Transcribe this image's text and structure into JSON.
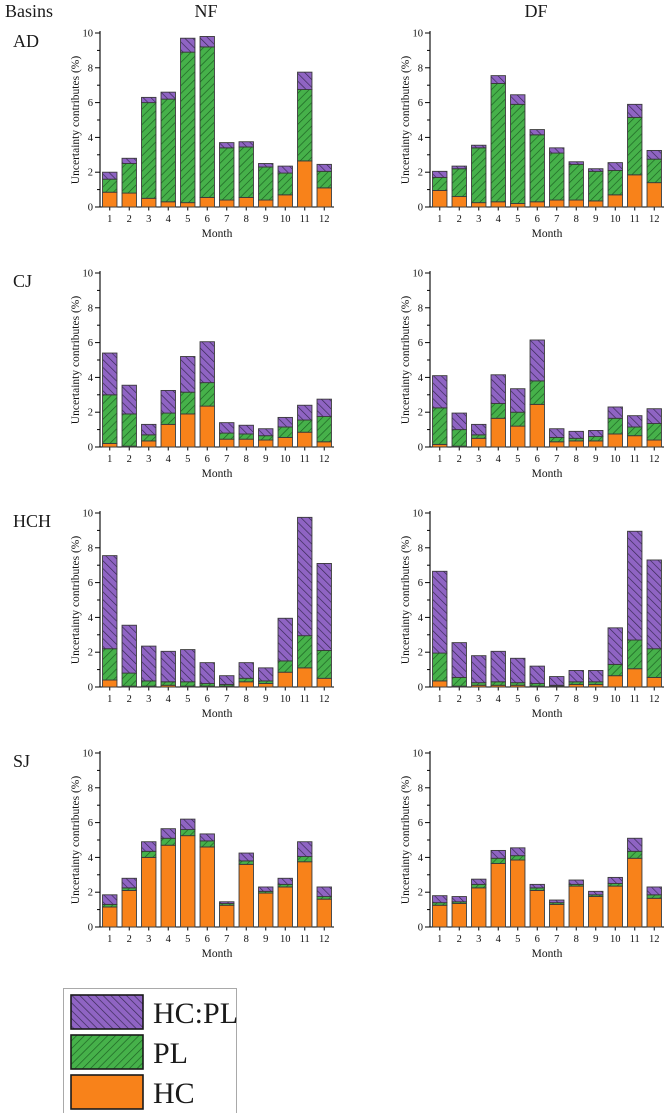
{
  "header": {
    "basins_label": "Basins",
    "col_nf": "NF",
    "col_df": "DF"
  },
  "colors": {
    "hc": "#F8821A",
    "pl_fill": "#46B14A",
    "pl_hatch": "#1B5E21",
    "hcpl_fill": "#8F64C3",
    "hcpl_hatch": "#34264F",
    "bar_outline": "#3A3A3A",
    "axis": "#000000",
    "legend_border": "#A9A9A9"
  },
  "axes": {
    "ylabel": "Uncertainty contributes (%)",
    "xlabel": "Month",
    "ylim": [
      0,
      10
    ],
    "yticks": [
      0,
      2,
      4,
      6,
      8,
      10
    ],
    "grid": false
  },
  "legend": {
    "position": "bottom-left",
    "entries": [
      {
        "label": "HC:PL",
        "key": "hcpl",
        "hatch": "backslash"
      },
      {
        "label": "PL",
        "key": "pl",
        "hatch": "slash"
      },
      {
        "label": "HC",
        "key": "hc",
        "hatch": "none"
      }
    ]
  },
  "chart_data": [
    {
      "basin": "AD",
      "scenario": "NF",
      "type": "bar",
      "stacked": true,
      "categories": [
        "1",
        "2",
        "3",
        "4",
        "5",
        "6",
        "7",
        "8",
        "9",
        "10",
        "11",
        "12"
      ],
      "series": [
        {
          "name": "HC",
          "values": [
            0.85,
            0.8,
            0.5,
            0.3,
            0.25,
            0.55,
            0.4,
            0.55,
            0.4,
            0.7,
            2.65,
            1.1
          ]
        },
        {
          "name": "PL",
          "values": [
            0.75,
            1.7,
            5.5,
            5.9,
            8.65,
            8.65,
            3.0,
            2.9,
            1.9,
            1.25,
            4.1,
            0.95
          ]
        },
        {
          "name": "HC:PL",
          "values": [
            0.4,
            0.3,
            0.3,
            0.4,
            0.8,
            0.6,
            0.3,
            0.3,
            0.2,
            0.4,
            1.0,
            0.4
          ]
        }
      ]
    },
    {
      "basin": "AD",
      "scenario": "DF",
      "type": "bar",
      "stacked": true,
      "categories": [
        "1",
        "2",
        "3",
        "4",
        "5",
        "6",
        "7",
        "8",
        "9",
        "10",
        "11",
        "12"
      ],
      "series": [
        {
          "name": "HC",
          "values": [
            0.95,
            0.6,
            0.25,
            0.3,
            0.2,
            0.3,
            0.4,
            0.4,
            0.35,
            0.7,
            1.85,
            1.4
          ]
        },
        {
          "name": "PL",
          "values": [
            0.75,
            1.6,
            3.15,
            6.8,
            5.7,
            3.85,
            2.7,
            2.05,
            1.7,
            1.4,
            3.3,
            1.35
          ]
        },
        {
          "name": "HC:PL",
          "values": [
            0.35,
            0.15,
            0.15,
            0.45,
            0.55,
            0.3,
            0.3,
            0.15,
            0.15,
            0.45,
            0.75,
            0.5
          ]
        }
      ]
    },
    {
      "basin": "CJ",
      "scenario": "NF",
      "type": "bar",
      "stacked": true,
      "categories": [
        "1",
        "2",
        "3",
        "4",
        "5",
        "6",
        "7",
        "8",
        "9",
        "10",
        "11",
        "12"
      ],
      "series": [
        {
          "name": "HC",
          "values": [
            0.2,
            0.05,
            0.35,
            1.3,
            1.9,
            2.35,
            0.45,
            0.45,
            0.4,
            0.55,
            0.85,
            0.3
          ]
        },
        {
          "name": "PL",
          "values": [
            2.8,
            1.85,
            0.35,
            0.65,
            1.25,
            1.35,
            0.35,
            0.3,
            0.25,
            0.6,
            0.7,
            1.45
          ]
        },
        {
          "name": "HC:PL",
          "values": [
            2.4,
            1.65,
            0.6,
            1.3,
            2.05,
            2.35,
            0.6,
            0.5,
            0.4,
            0.55,
            0.85,
            1.0
          ]
        }
      ]
    },
    {
      "basin": "CJ",
      "scenario": "DF",
      "type": "bar",
      "stacked": true,
      "categories": [
        "1",
        "2",
        "3",
        "4",
        "5",
        "6",
        "7",
        "8",
        "9",
        "10",
        "11",
        "12"
      ],
      "series": [
        {
          "name": "HC",
          "values": [
            0.15,
            0.05,
            0.5,
            1.65,
            1.2,
            2.45,
            0.3,
            0.35,
            0.35,
            0.75,
            0.65,
            0.4
          ]
        },
        {
          "name": "PL",
          "values": [
            2.1,
            0.95,
            0.2,
            0.85,
            0.8,
            1.35,
            0.25,
            0.15,
            0.25,
            0.9,
            0.5,
            0.95
          ]
        },
        {
          "name": "HC:PL",
          "values": [
            1.85,
            0.95,
            0.6,
            1.65,
            1.35,
            2.35,
            0.5,
            0.4,
            0.35,
            0.65,
            0.65,
            0.85
          ]
        }
      ]
    },
    {
      "basin": "HCH",
      "scenario": "NF",
      "type": "bar",
      "stacked": true,
      "categories": [
        "1",
        "2",
        "3",
        "4",
        "5",
        "6",
        "7",
        "8",
        "9",
        "10",
        "11",
        "12"
      ],
      "series": [
        {
          "name": "HC",
          "values": [
            0.4,
            0.05,
            0.05,
            0.1,
            0.05,
            0.05,
            0.05,
            0.3,
            0.2,
            0.85,
            1.1,
            0.5
          ]
        },
        {
          "name": "PL",
          "values": [
            1.8,
            0.75,
            0.3,
            0.2,
            0.25,
            0.15,
            0.1,
            0.2,
            0.15,
            0.65,
            1.85,
            1.6
          ]
        },
        {
          "name": "HC:PL",
          "values": [
            5.35,
            2.75,
            2.0,
            1.75,
            1.85,
            1.2,
            0.5,
            0.9,
            0.75,
            2.45,
            6.8,
            5.0
          ]
        }
      ]
    },
    {
      "basin": "HCH",
      "scenario": "DF",
      "type": "bar",
      "stacked": true,
      "categories": [
        "1",
        "2",
        "3",
        "4",
        "5",
        "6",
        "7",
        "8",
        "9",
        "10",
        "11",
        "12"
      ],
      "series": [
        {
          "name": "HC",
          "values": [
            0.35,
            0.05,
            0.1,
            0.1,
            0.1,
            0.05,
            0.05,
            0.15,
            0.15,
            0.65,
            1.05,
            0.55
          ]
        },
        {
          "name": "PL",
          "values": [
            1.6,
            0.5,
            0.15,
            0.2,
            0.15,
            0.15,
            0.05,
            0.15,
            0.15,
            0.65,
            1.65,
            1.65
          ]
        },
        {
          "name": "HC:PL",
          "values": [
            4.7,
            2.0,
            1.55,
            1.75,
            1.4,
            1.0,
            0.5,
            0.65,
            0.65,
            2.1,
            6.25,
            5.1
          ]
        }
      ]
    },
    {
      "basin": "SJ",
      "scenario": "NF",
      "type": "bar",
      "stacked": true,
      "categories": [
        "1",
        "2",
        "3",
        "4",
        "5",
        "6",
        "7",
        "8",
        "9",
        "10",
        "11",
        "12"
      ],
      "series": [
        {
          "name": "HC",
          "values": [
            1.15,
            2.1,
            4.0,
            4.7,
            5.25,
            4.6,
            1.25,
            3.6,
            1.95,
            2.3,
            3.75,
            1.6
          ]
        },
        {
          "name": "PL",
          "values": [
            0.15,
            0.15,
            0.35,
            0.4,
            0.35,
            0.35,
            0.1,
            0.2,
            0.1,
            0.15,
            0.3,
            0.15
          ]
        },
        {
          "name": "HC:PL",
          "values": [
            0.55,
            0.55,
            0.55,
            0.55,
            0.6,
            0.4,
            0.1,
            0.45,
            0.25,
            0.35,
            0.85,
            0.55
          ]
        }
      ]
    },
    {
      "basin": "SJ",
      "scenario": "DF",
      "type": "bar",
      "stacked": true,
      "categories": [
        "1",
        "2",
        "3",
        "4",
        "5",
        "6",
        "7",
        "8",
        "9",
        "10",
        "11",
        "12"
      ],
      "series": [
        {
          "name": "HC",
          "values": [
            1.25,
            1.35,
            2.25,
            3.65,
            3.85,
            2.1,
            1.3,
            2.35,
            1.75,
            2.35,
            3.95,
            1.65
          ]
        },
        {
          "name": "PL",
          "values": [
            0.15,
            0.1,
            0.2,
            0.3,
            0.25,
            0.15,
            0.1,
            0.1,
            0.1,
            0.15,
            0.4,
            0.2
          ]
        },
        {
          "name": "HC:PL",
          "values": [
            0.4,
            0.3,
            0.3,
            0.45,
            0.45,
            0.2,
            0.15,
            0.25,
            0.2,
            0.35,
            0.75,
            0.45
          ]
        }
      ]
    }
  ]
}
